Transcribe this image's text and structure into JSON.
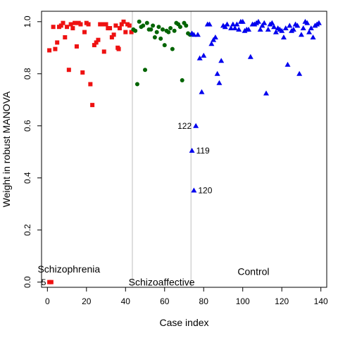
{
  "chart_data": {
    "type": "scatter",
    "xlabel": "Case index",
    "ylabel": "Weight in robust MANOVA",
    "xlim": [
      -3,
      143
    ],
    "ylim": [
      -0.02,
      1.04
    ],
    "xticks": [
      0,
      20,
      40,
      60,
      80,
      100,
      120,
      140
    ],
    "yticks": [
      0.0,
      0.2,
      0.4,
      0.6,
      0.8,
      1.0
    ],
    "xtick_labels": [
      "0",
      "20",
      "40",
      "60",
      "80",
      "100",
      "120",
      "140"
    ],
    "ytick_labels": [
      "0.0",
      "0.2",
      "0.4",
      "0.6",
      "0.8",
      "1.0"
    ],
    "grid": false,
    "separators": [
      43.5,
      73.5
    ],
    "groups": [
      {
        "label": "Schizophrenia",
        "x": 11,
        "y": 0.05
      },
      {
        "label": "Schizoaffective",
        "x": 58.5,
        "y": 0.0
      },
      {
        "label": "Control",
        "x": 105.5,
        "y": 0.04
      }
    ],
    "series": [
      {
        "name": "Schizophrenia",
        "marker": "square",
        "color": "#ee1111",
        "points": [
          [
            1,
            0.0
          ],
          [
            2,
            0.0
          ],
          [
            1,
            0.89
          ],
          [
            3,
            0.98
          ],
          [
            4,
            0.895
          ],
          [
            5,
            0.92
          ],
          [
            6,
            0.98
          ],
          [
            7,
            0.985
          ],
          [
            8,
            0.995
          ],
          [
            9,
            0.94
          ],
          [
            10,
            0.98
          ],
          [
            11,
            0.815
          ],
          [
            12,
            0.99
          ],
          [
            13,
            0.975
          ],
          [
            14,
            0.995
          ],
          [
            15,
            0.905
          ],
          [
            16,
            0.995
          ],
          [
            17,
            0.99
          ],
          [
            18,
            0.805
          ],
          [
            19,
            0.96
          ],
          [
            20,
            0.995
          ],
          [
            21,
            0.99
          ],
          [
            22,
            0.76
          ],
          [
            23,
            0.68
          ],
          [
            24,
            0.91
          ],
          [
            25,
            0.92
          ],
          [
            26,
            0.93
          ],
          [
            27,
            0.99
          ],
          [
            28,
            0.99
          ],
          [
            29,
            0.885
          ],
          [
            30,
            0.99
          ],
          [
            31,
            0.975
          ],
          [
            32,
            0.975
          ],
          [
            33,
            0.94
          ],
          [
            34,
            0.95
          ],
          [
            35,
            0.985
          ],
          [
            36,
            0.9
          ],
          [
            36.5,
            0.895
          ],
          [
            37,
            0.975
          ],
          [
            38,
            0.99
          ],
          [
            39,
            1.0
          ],
          [
            40,
            0.96
          ],
          [
            41,
            0.99
          ],
          [
            42,
            0.985
          ],
          [
            43,
            0.96
          ]
        ]
      },
      {
        "name": "Schizoaffective",
        "marker": "circle",
        "color": "#006400",
        "points": [
          [
            44,
            0.97
          ],
          [
            45,
            0.965
          ],
          [
            46,
            0.76
          ],
          [
            47,
            1.0
          ],
          [
            48,
            0.98
          ],
          [
            49,
            0.985
          ],
          [
            50,
            0.815
          ],
          [
            51,
            0.995
          ],
          [
            52,
            0.97
          ],
          [
            53,
            0.97
          ],
          [
            54,
            0.985
          ],
          [
            55,
            0.94
          ],
          [
            56,
            0.96
          ],
          [
            57,
            0.98
          ],
          [
            58,
            0.935
          ],
          [
            59,
            0.97
          ],
          [
            60,
            0.91
          ],
          [
            61,
            0.965
          ],
          [
            62,
            0.96
          ],
          [
            63,
            0.975
          ],
          [
            64,
            0.895
          ],
          [
            65,
            0.965
          ],
          [
            66,
            0.995
          ],
          [
            67,
            0.99
          ],
          [
            68,
            0.98
          ],
          [
            69,
            0.775
          ],
          [
            70,
            0.995
          ],
          [
            71,
            0.985
          ],
          [
            72,
            0.955
          ],
          [
            73,
            0.95
          ]
        ]
      },
      {
        "name": "Control",
        "marker": "triangle",
        "color": "#0000ee",
        "points": [
          [
            74,
            0.955
          ],
          [
            75,
            0.95
          ],
          [
            77,
            0.95
          ],
          [
            78,
            0.86
          ],
          [
            79,
            0.73
          ],
          [
            80,
            0.87
          ],
          [
            82,
            0.99
          ],
          [
            83,
            0.99
          ],
          [
            84,
            0.915
          ],
          [
            85,
            0.93
          ],
          [
            86,
            0.94
          ],
          [
            87,
            0.8
          ],
          [
            88,
            0.765
          ],
          [
            89,
            0.85
          ],
          [
            90,
            0.985
          ],
          [
            91,
            0.98
          ],
          [
            92,
            0.99
          ],
          [
            94,
            0.975
          ],
          [
            95,
            0.99
          ],
          [
            96,
            0.975
          ],
          [
            97,
            0.99
          ],
          [
            98,
            0.97
          ],
          [
            99,
            1.0
          ],
          [
            100,
            1.0
          ],
          [
            101,
            0.965
          ],
          [
            102,
            0.97
          ],
          [
            103,
            0.97
          ],
          [
            104,
            0.865
          ],
          [
            105,
            0.99
          ],
          [
            106,
            0.99
          ],
          [
            107,
            0.995
          ],
          [
            108,
            1.0
          ],
          [
            109,
            0.97
          ],
          [
            110,
            0.985
          ],
          [
            111,
            0.995
          ],
          [
            112,
            0.725
          ],
          [
            113,
            0.97
          ],
          [
            114,
            0.99
          ],
          [
            115,
            0.995
          ],
          [
            116,
            0.98
          ],
          [
            117,
            0.96
          ],
          [
            118,
            0.975
          ],
          [
            119,
            0.97
          ],
          [
            120,
            0.965
          ],
          [
            121,
            0.94
          ],
          [
            122,
            0.975
          ],
          [
            123,
            0.835
          ],
          [
            124,
            0.985
          ],
          [
            125,
            0.965
          ],
          [
            126,
            0.97
          ],
          [
            127,
            0.99
          ],
          [
            128,
            0.985
          ],
          [
            129,
            0.8
          ],
          [
            130,
            0.95
          ],
          [
            131,
            0.975
          ],
          [
            132,
            1.0
          ],
          [
            133,
            0.995
          ],
          [
            134,
            0.96
          ],
          [
            135,
            0.975
          ],
          [
            136,
            0.94
          ],
          [
            137,
            0.985
          ],
          [
            138,
            0.99
          ],
          [
            139,
            0.995
          ],
          [
            76,
            0.6
          ],
          [
            74,
            0.505
          ],
          [
            75,
            0.352
          ]
        ]
      }
    ],
    "annotations": [
      {
        "text": "5",
        "x": 1.5,
        "y": 0.0,
        "side": "left"
      },
      {
        "text": "122",
        "x": 76,
        "y": 0.6,
        "side": "left"
      },
      {
        "text": "119",
        "x": 74,
        "y": 0.505,
        "side": "right"
      },
      {
        "text": "120",
        "x": 75,
        "y": 0.352,
        "side": "right"
      }
    ]
  }
}
